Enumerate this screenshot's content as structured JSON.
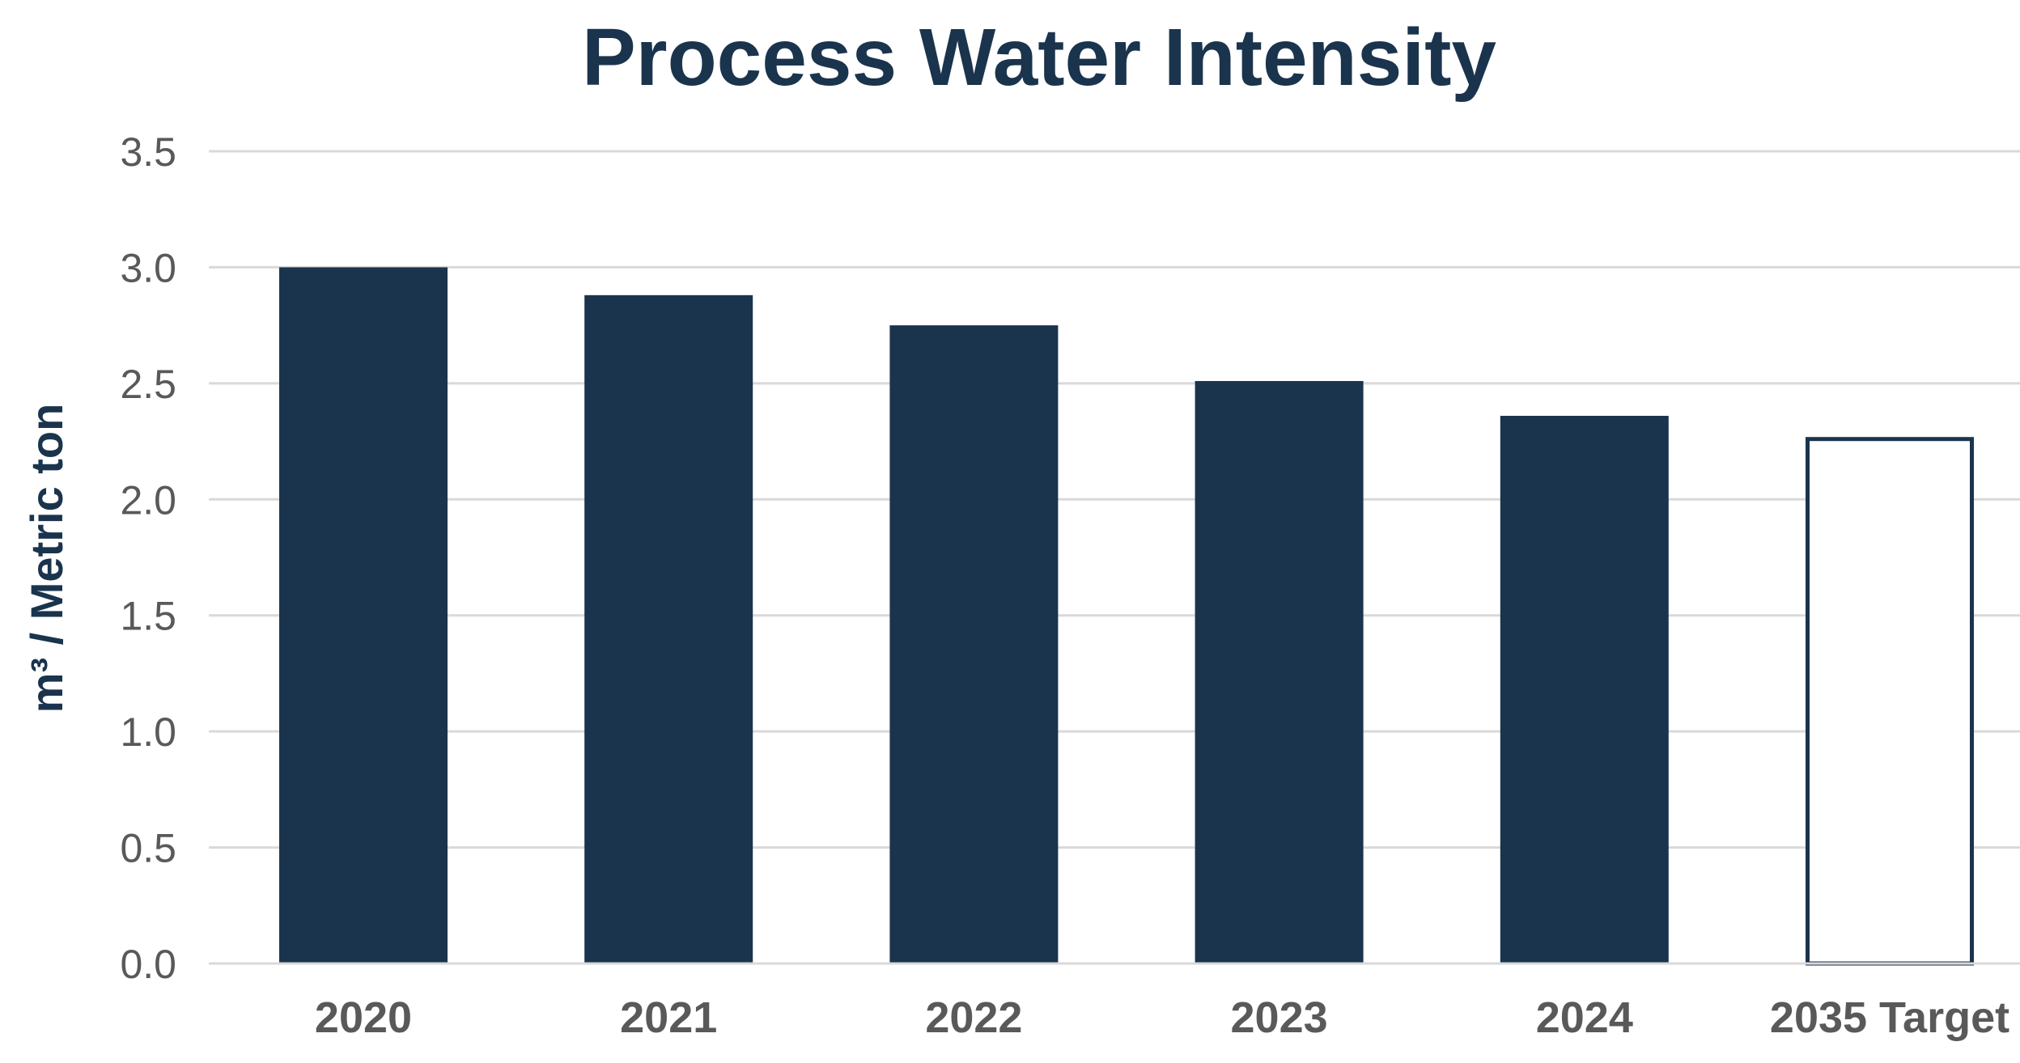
{
  "chart_data": {
    "type": "bar",
    "title": "Process Water Intensity",
    "xlabel": "",
    "ylabel": "m³ / Metric ton",
    "categories": [
      "2020",
      "2021",
      "2022",
      "2023",
      "2024",
      "2035 Target"
    ],
    "values": [
      3.0,
      2.88,
      2.75,
      2.51,
      2.36,
      2.26
    ],
    "y_ticks": [
      "0.0",
      "0.5",
      "1.0",
      "1.5",
      "2.0",
      "2.5",
      "3.0",
      "3.5"
    ],
    "ylim": [
      0,
      3.5
    ],
    "grid": true,
    "legend": "none",
    "bar_styles": [
      "filled",
      "filled",
      "filled",
      "filled",
      "filled",
      "outline"
    ],
    "colors": {
      "bar": "#1b344d",
      "title": "#1b344d",
      "ylabel": "#1b344d",
      "tick_text": "#595959",
      "grid": "#d9d9d9",
      "outline_fill": "#ffffff"
    }
  }
}
